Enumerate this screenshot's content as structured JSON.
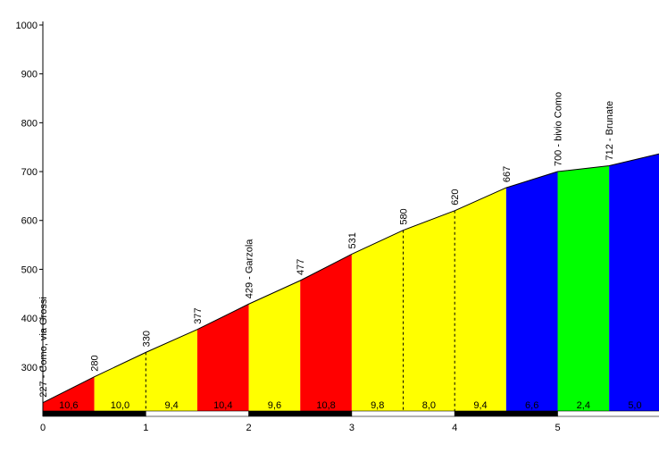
{
  "chart_data": {
    "type": "area",
    "title": "",
    "xlabel": "",
    "ylabel": "",
    "xlim": [
      0,
      6
    ],
    "ylim": [
      210,
      1000
    ],
    "xticks": [
      "0",
      "1",
      "2",
      "3",
      "4",
      "5"
    ],
    "yticks": [
      "300",
      "400",
      "500",
      "600",
      "700",
      "800",
      "900",
      "1000"
    ],
    "grid": false,
    "legend": "none",
    "points": [
      {
        "x": 0.0,
        "y": 227,
        "label": "227 - Como, via Grossi"
      },
      {
        "x": 0.5,
        "y": 280,
        "label": "280"
      },
      {
        "x": 1.0,
        "y": 330,
        "label": "330"
      },
      {
        "x": 1.5,
        "y": 377,
        "label": "377"
      },
      {
        "x": 2.0,
        "y": 429,
        "label": "429 - Garzola"
      },
      {
        "x": 2.5,
        "y": 477,
        "label": "477"
      },
      {
        "x": 3.0,
        "y": 531,
        "label": "531"
      },
      {
        "x": 3.5,
        "y": 580,
        "label": "580"
      },
      {
        "x": 4.0,
        "y": 620,
        "label": "620"
      },
      {
        "x": 4.5,
        "y": 667,
        "label": "667"
      },
      {
        "x": 5.0,
        "y": 700,
        "label": "700 - bivio Como"
      },
      {
        "x": 5.5,
        "y": 712,
        "label": "712 - Brunate"
      },
      {
        "x": 6.0,
        "y": 737,
        "label": ""
      }
    ],
    "segments": [
      {
        "grade": "10,6",
        "color": "#ff0000"
      },
      {
        "grade": "10,0",
        "color": "#ffff00"
      },
      {
        "grade": "9,4",
        "color": "#ffff00"
      },
      {
        "grade": "10,4",
        "color": "#ff0000"
      },
      {
        "grade": "9,6",
        "color": "#ffff00"
      },
      {
        "grade": "10,8",
        "color": "#ff0000"
      },
      {
        "grade": "9,8",
        "color": "#ffff00"
      },
      {
        "grade": "8,0",
        "color": "#ffff00"
      },
      {
        "grade": "9,4",
        "color": "#ffff00"
      },
      {
        "grade": "6,6",
        "color": "#0000ff"
      },
      {
        "grade": "2,4",
        "color": "#00ff00"
      },
      {
        "grade": "5,0",
        "color": "#0000ff"
      }
    ],
    "dashed_separators_at": [
      1.0,
      3.5,
      4.0
    ],
    "km_bar_colors": [
      "#000000",
      "#ffffff"
    ]
  }
}
